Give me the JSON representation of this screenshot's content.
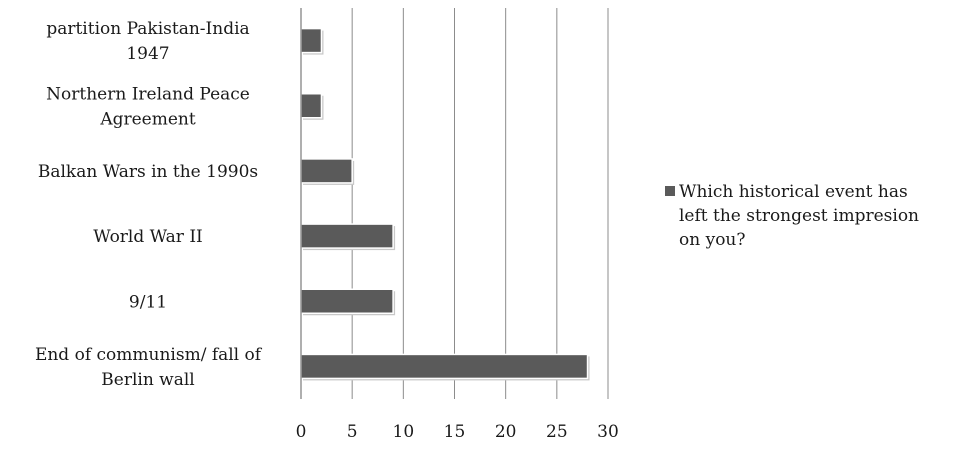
{
  "chart_data": {
    "type": "bar",
    "orientation": "horizontal",
    "categories": [
      [
        "partition Pakistan-India",
        "1947"
      ],
      [
        "Northern Ireland Peace",
        "Agreement"
      ],
      [
        "Balkan Wars in the 1990s"
      ],
      [
        "World War II"
      ],
      [
        "9/11"
      ],
      [
        "End of communism/ fall of",
        "Berlin wall"
      ]
    ],
    "series": [
      {
        "name": [
          "Which historical event has",
          "left the strongest impresion",
          "on you?"
        ],
        "values": [
          2,
          2,
          5,
          9,
          9,
          28
        ],
        "color": "#5a5a5a"
      }
    ],
    "xticks": [
      "0",
      "5",
      "10",
      "15",
      "20",
      "25",
      "30"
    ],
    "xlim": [
      0,
      30
    ],
    "grid": true,
    "legend_position": "right"
  }
}
